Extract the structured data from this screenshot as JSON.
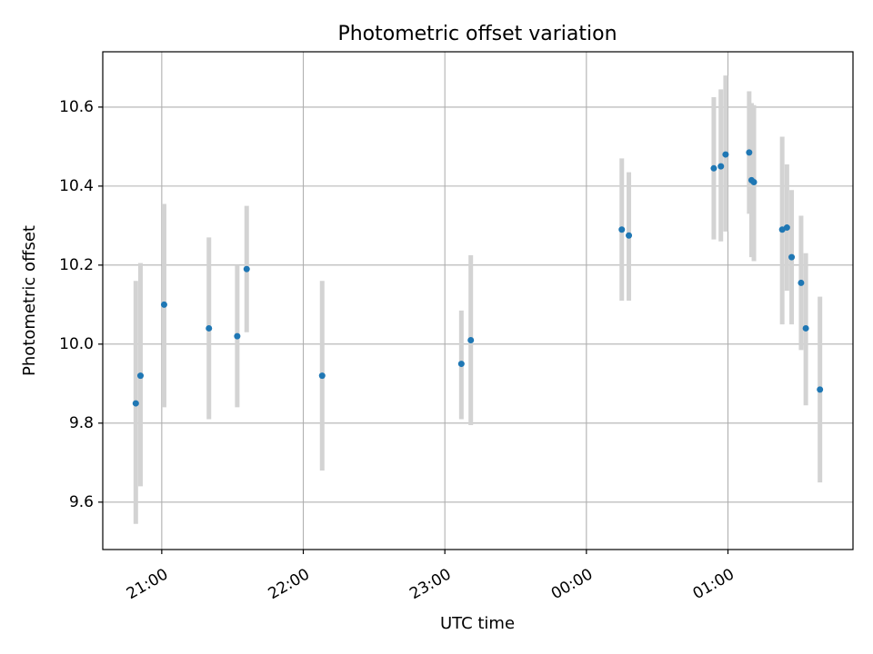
{
  "colors": {
    "point": "#1f77b4",
    "errorbar": "#d3d3d3",
    "grid": "#b0b0b0",
    "axes": "#000000",
    "background": "#ffffff"
  },
  "chart_data": {
    "type": "scatter",
    "title": "Photometric offset variation",
    "xlabel": "UTC time",
    "ylabel": "Photometric offset",
    "grid": true,
    "legend": "none",
    "x_scale": "time",
    "xlim": [
      "20:35",
      "25:53"
    ],
    "ylim": [
      9.48,
      10.74
    ],
    "x_ticks": [
      {
        "value": "21:00",
        "label": "21:00"
      },
      {
        "value": "22:00",
        "label": "22:00"
      },
      {
        "value": "23:00",
        "label": "23:00"
      },
      {
        "value": "24:00",
        "label": "00:00"
      },
      {
        "value": "25:00",
        "label": "01:00"
      }
    ],
    "y_ticks": [
      {
        "value": 9.6,
        "label": "9.6"
      },
      {
        "value": 9.8,
        "label": "9.8"
      },
      {
        "value": 10.0,
        "label": "10.0"
      },
      {
        "value": 10.2,
        "label": "10.2"
      },
      {
        "value": 10.4,
        "label": "10.4"
      },
      {
        "value": 10.6,
        "label": "10.6"
      }
    ],
    "points": [
      {
        "time": "20:49",
        "y": 9.85,
        "lower": 9.545,
        "upper": 10.16
      },
      {
        "time": "20:51",
        "y": 9.92,
        "lower": 9.64,
        "upper": 10.205
      },
      {
        "time": "21:01",
        "y": 10.1,
        "lower": 9.84,
        "upper": 10.355
      },
      {
        "time": "21:20",
        "y": 10.04,
        "lower": 9.81,
        "upper": 10.27
      },
      {
        "time": "21:32",
        "y": 10.02,
        "lower": 9.84,
        "upper": 10.2
      },
      {
        "time": "21:36",
        "y": 10.19,
        "lower": 10.03,
        "upper": 10.35
      },
      {
        "time": "22:08",
        "y": 9.92,
        "lower": 9.68,
        "upper": 10.16
      },
      {
        "time": "23:07",
        "y": 9.95,
        "lower": 9.81,
        "upper": 10.085
      },
      {
        "time": "23:11",
        "y": 10.01,
        "lower": 9.795,
        "upper": 10.225
      },
      {
        "time": "24:15",
        "y": 10.29,
        "lower": 10.11,
        "upper": 10.47
      },
      {
        "time": "24:18",
        "y": 10.275,
        "lower": 10.11,
        "upper": 10.435
      },
      {
        "time": "24:54",
        "y": 10.445,
        "lower": 10.265,
        "upper": 10.625
      },
      {
        "time": "24:57",
        "y": 10.45,
        "lower": 10.26,
        "upper": 10.645
      },
      {
        "time": "24:59",
        "y": 10.48,
        "lower": 10.285,
        "upper": 10.68
      },
      {
        "time": "25:09",
        "y": 10.485,
        "lower": 10.33,
        "upper": 10.64
      },
      {
        "time": "25:10",
        "y": 10.415,
        "lower": 10.22,
        "upper": 10.61
      },
      {
        "time": "25:11",
        "y": 10.41,
        "lower": 10.21,
        "upper": 10.605
      },
      {
        "time": "25:23",
        "y": 10.29,
        "lower": 10.05,
        "upper": 10.525
      },
      {
        "time": "25:25",
        "y": 10.295,
        "lower": 10.135,
        "upper": 10.455
      },
      {
        "time": "25:27",
        "y": 10.22,
        "lower": 10.05,
        "upper": 10.39
      },
      {
        "time": "25:31",
        "y": 10.155,
        "lower": 9.985,
        "upper": 10.325
      },
      {
        "time": "25:33",
        "y": 10.04,
        "lower": 9.845,
        "upper": 10.23
      },
      {
        "time": "25:39",
        "y": 9.885,
        "lower": 9.65,
        "upper": 10.12
      }
    ]
  }
}
